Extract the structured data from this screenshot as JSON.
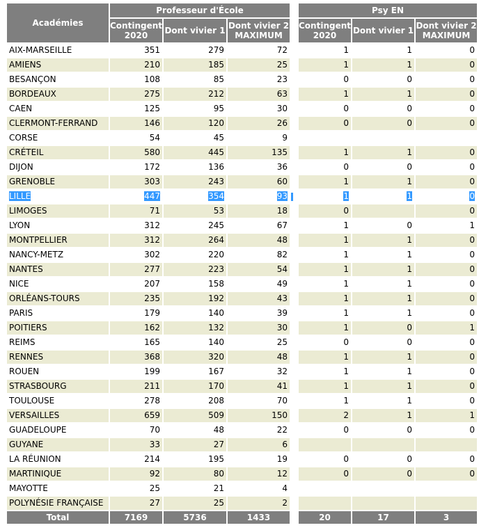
{
  "headers": {
    "academies": "Académies",
    "group_pe": "Professeur d'École",
    "group_psy": "Psy EN",
    "contingent": "Contingent 2020",
    "vivier1": "Dont vivier 1",
    "vivier2": "Dont vivier 2 MAXIMUM"
  },
  "rows": [
    {
      "name": "AIX-MARSEILLE",
      "pe": [
        "351",
        "279",
        "72"
      ],
      "psy": [
        "1",
        "1",
        "0"
      ]
    },
    {
      "name": "AMIENS",
      "pe": [
        "210",
        "185",
        "25"
      ],
      "psy": [
        "1",
        "1",
        "0"
      ]
    },
    {
      "name": "BESANÇON",
      "pe": [
        "108",
        "85",
        "23"
      ],
      "psy": [
        "0",
        "0",
        "0"
      ]
    },
    {
      "name": "BORDEAUX",
      "pe": [
        "275",
        "212",
        "63"
      ],
      "psy": [
        "1",
        "1",
        "0"
      ]
    },
    {
      "name": "CAEN",
      "pe": [
        "125",
        "95",
        "30"
      ],
      "psy": [
        "0",
        "0",
        "0"
      ]
    },
    {
      "name": "CLERMONT-FERRAND",
      "pe": [
        "146",
        "120",
        "26"
      ],
      "psy": [
        "0",
        "0",
        "0"
      ]
    },
    {
      "name": "CORSE",
      "pe": [
        "54",
        "45",
        "9"
      ],
      "psy": [
        "",
        "",
        ""
      ]
    },
    {
      "name": "CRÉTEIL",
      "pe": [
        "580",
        "445",
        "135"
      ],
      "psy": [
        "1",
        "1",
        "0"
      ]
    },
    {
      "name": "DIJON",
      "pe": [
        "172",
        "136",
        "36"
      ],
      "psy": [
        "0",
        "0",
        "0"
      ]
    },
    {
      "name": "GRENOBLE",
      "pe": [
        "303",
        "243",
        "60"
      ],
      "psy": [
        "1",
        "1",
        "0"
      ]
    },
    {
      "name": "LILLE",
      "pe": [
        "447",
        "354",
        "93"
      ],
      "psy": [
        "1",
        "1",
        "0"
      ],
      "selected": true
    },
    {
      "name": "LIMOGES",
      "pe": [
        "71",
        "53",
        "18"
      ],
      "psy": [
        "0",
        "",
        "0"
      ]
    },
    {
      "name": "LYON",
      "pe": [
        "312",
        "245",
        "67"
      ],
      "psy": [
        "1",
        "0",
        "1"
      ]
    },
    {
      "name": "MONTPELLIER",
      "pe": [
        "312",
        "264",
        "48"
      ],
      "psy": [
        "1",
        "1",
        "0"
      ]
    },
    {
      "name": "NANCY-METZ",
      "pe": [
        "302",
        "220",
        "82"
      ],
      "psy": [
        "1",
        "1",
        "0"
      ]
    },
    {
      "name": "NANTES",
      "pe": [
        "277",
        "223",
        "54"
      ],
      "psy": [
        "1",
        "1",
        "0"
      ]
    },
    {
      "name": "NICE",
      "pe": [
        "207",
        "158",
        "49"
      ],
      "psy": [
        "1",
        "1",
        "0"
      ]
    },
    {
      "name": "ORLÉANS-TOURS",
      "pe": [
        "235",
        "192",
        "43"
      ],
      "psy": [
        "1",
        "1",
        "0"
      ]
    },
    {
      "name": "PARIS",
      "pe": [
        "179",
        "140",
        "39"
      ],
      "psy": [
        "1",
        "1",
        "0"
      ]
    },
    {
      "name": "POITIERS",
      "pe": [
        "162",
        "132",
        "30"
      ],
      "psy": [
        "1",
        "0",
        "1"
      ]
    },
    {
      "name": "REIMS",
      "pe": [
        "165",
        "140",
        "25"
      ],
      "psy": [
        "0",
        "0",
        "0"
      ]
    },
    {
      "name": "RENNES",
      "pe": [
        "368",
        "320",
        "48"
      ],
      "psy": [
        "1",
        "1",
        "0"
      ]
    },
    {
      "name": "ROUEN",
      "pe": [
        "199",
        "167",
        "32"
      ],
      "psy": [
        "1",
        "1",
        "0"
      ]
    },
    {
      "name": "STRASBOURG",
      "pe": [
        "211",
        "170",
        "41"
      ],
      "psy": [
        "1",
        "1",
        "0"
      ]
    },
    {
      "name": "TOULOUSE",
      "pe": [
        "278",
        "208",
        "70"
      ],
      "psy": [
        "1",
        "1",
        "0"
      ]
    },
    {
      "name": "VERSAILLES",
      "pe": [
        "659",
        "509",
        "150"
      ],
      "psy": [
        "2",
        "1",
        "1"
      ]
    },
    {
      "name": "GUADELOUPE",
      "pe": [
        "70",
        "48",
        "22"
      ],
      "psy": [
        "0",
        "0",
        "0"
      ]
    },
    {
      "name": "GUYANE",
      "pe": [
        "33",
        "27",
        "6"
      ],
      "psy": [
        "",
        "",
        ""
      ]
    },
    {
      "name": "LA RÉUNION",
      "pe": [
        "214",
        "195",
        "19"
      ],
      "psy": [
        "0",
        "0",
        "0"
      ]
    },
    {
      "name": "MARTINIQUE",
      "pe": [
        "92",
        "80",
        "12"
      ],
      "psy": [
        "0",
        "0",
        "0"
      ]
    },
    {
      "name": "MAYOTTE",
      "pe": [
        "25",
        "21",
        "4"
      ],
      "psy": [
        "",
        "",
        ""
      ]
    },
    {
      "name": "POLYNÉSIE FRANÇAISE",
      "pe": [
        "27",
        "25",
        "2"
      ],
      "psy": [
        "",
        "",
        ""
      ]
    }
  ],
  "total": {
    "label": "Total",
    "pe": [
      "7169",
      "5736",
      "1433"
    ],
    "psy": [
      "20",
      "17",
      "3"
    ]
  },
  "colors": {
    "header_bg": "#7f7f7f",
    "stripe": "#ebebd3",
    "selection": "#3399ff"
  }
}
